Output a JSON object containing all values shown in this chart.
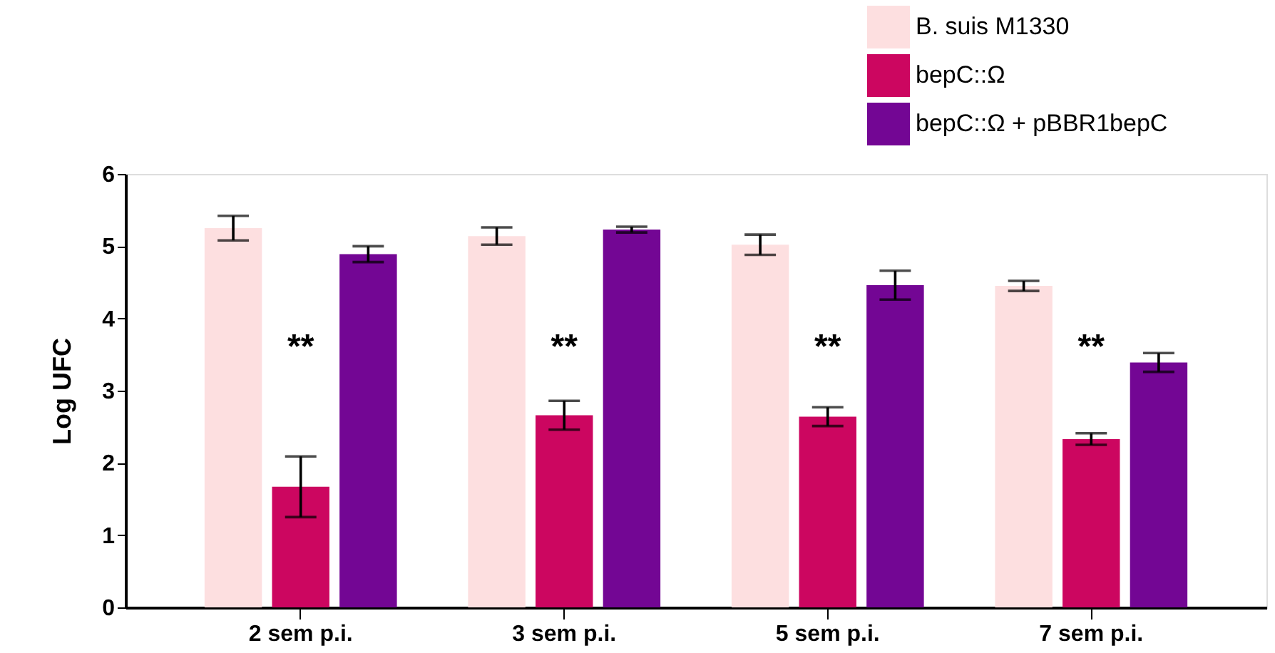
{
  "chart_data": {
    "type": "bar",
    "ylabel": "Log UFC",
    "categories": [
      "2 sem p.i.",
      "3 sem p.i.",
      "5 sem p.i.",
      "7 sem p.i."
    ],
    "series": [
      {
        "name": "B. suis M1330",
        "color": "#fddfe0",
        "values": [
          5.25,
          5.14,
          5.02,
          4.45
        ],
        "errors": [
          0.17,
          0.12,
          0.14,
          0.07
        ]
      },
      {
        "name": "bepC::Ω",
        "color": "#cc0660",
        "values": [
          1.67,
          2.66,
          2.64,
          2.33
        ],
        "errors": [
          0.42,
          0.2,
          0.13,
          0.08
        ]
      },
      {
        "name": "bepC::Ω + pBBR1bepC",
        "color": "#730694",
        "values": [
          4.89,
          5.23,
          4.46,
          3.39
        ],
        "errors": [
          0.11,
          0.04,
          0.2,
          0.13
        ]
      }
    ],
    "annotations": [
      "**",
      "**",
      "**",
      "**"
    ],
    "ylim": [
      0,
      6
    ],
    "yticks": [
      0,
      1,
      2,
      3,
      4,
      5,
      6
    ],
    "grid": false,
    "legend": "top right"
  }
}
